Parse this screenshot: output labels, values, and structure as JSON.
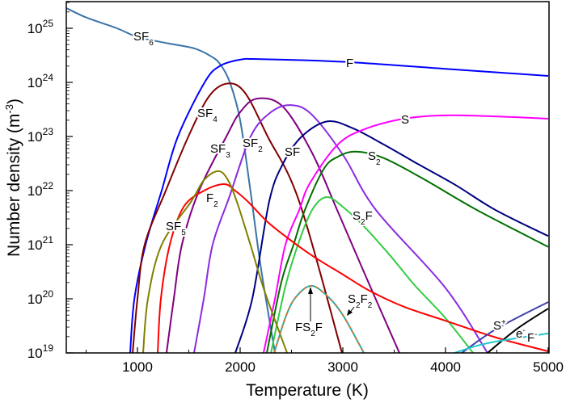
{
  "chart_data": {
    "type": "line",
    "xlabel": "Temperature (K)",
    "ylabel": "Number density (m",
    "ylabel_unit_sup": "-3",
    "ylabel_close": ")",
    "xlim": [
      300,
      5000
    ],
    "ylim": [
      1e+19,
      3e+25
    ],
    "yscale": "log",
    "xticks": [
      1000,
      2000,
      3000,
      4000,
      5000
    ],
    "yticks": [
      {
        "base": "10",
        "exp": "19"
      },
      {
        "base": "10",
        "exp": "20"
      },
      {
        "base": "10",
        "exp": "21"
      },
      {
        "base": "10",
        "exp": "22"
      },
      {
        "base": "10",
        "exp": "23"
      },
      {
        "base": "10",
        "exp": "24"
      },
      {
        "base": "10",
        "exp": "25"
      }
    ],
    "grid": false,
    "legend": "inline labels",
    "series": [
      {
        "name": "SF6",
        "color": "#3b73a8",
        "points": [
          [
            300,
            25.38
          ],
          [
            500,
            25.2
          ],
          [
            800,
            25.0
          ],
          [
            1000,
            24.84
          ],
          [
            1300,
            24.72
          ],
          [
            1550,
            24.63
          ],
          [
            1700,
            24.5
          ],
          [
            1800,
            24.35
          ],
          [
            1900,
            24.0
          ],
          [
            2000,
            23.3
          ],
          [
            2100,
            22.0
          ],
          [
            2200,
            20.6
          ],
          [
            2339,
            19
          ]
        ]
      },
      {
        "name": "F",
        "color": "#0000ff",
        "points": [
          [
            929,
            19
          ],
          [
            970,
            20
          ],
          [
            1079,
            21
          ],
          [
            1236,
            22
          ],
          [
            1394,
            23
          ],
          [
            1654,
            24
          ],
          [
            1800,
            24.3
          ],
          [
            2000,
            24.42
          ],
          [
            2200,
            24.43
          ],
          [
            3000,
            24.38
          ],
          [
            4000,
            24.25
          ],
          [
            5000,
            24.12
          ]
        ]
      },
      {
        "name": "SF4",
        "color": "#800000",
        "points": [
          [
            953,
            19
          ],
          [
            1000,
            20
          ],
          [
            1070,
            21
          ],
          [
            1276,
            22
          ],
          [
            1496,
            23
          ],
          [
            1700,
            23.75
          ],
          [
            1882,
            23.98
          ],
          [
            2050,
            23.8
          ],
          [
            2268,
            23
          ],
          [
            2575,
            21.8
          ],
          [
            2992,
            19
          ]
        ]
      },
      {
        "name": "SF3",
        "color": "#800080",
        "points": [
          [
            1283,
            19
          ],
          [
            1354,
            20
          ],
          [
            1433,
            21
          ],
          [
            1600,
            22
          ],
          [
            1866,
            23
          ],
          [
            2000,
            23.45
          ],
          [
            2165,
            23.7
          ],
          [
            2417,
            23.55
          ],
          [
            2700,
            22.7
          ],
          [
            2945,
            21.64
          ],
          [
            3250,
            20.3
          ],
          [
            3551,
            19
          ]
        ]
      },
      {
        "name": "SF2",
        "color": "#8a2be2",
        "points": [
          [
            1551,
            19
          ],
          [
            1646,
            20
          ],
          [
            1732,
            21
          ],
          [
            1898,
            21.9
          ],
          [
            2102,
            23
          ],
          [
            2300,
            23.45
          ],
          [
            2496,
            23.58
          ],
          [
            2700,
            23.4
          ],
          [
            3008,
            22.64
          ],
          [
            3323,
            21.64
          ],
          [
            4000,
            20.2
          ],
          [
            4409,
            19
          ]
        ]
      },
      {
        "name": "SF",
        "color": "#000080",
        "points": [
          [
            1953,
            19
          ],
          [
            2118,
            20
          ],
          [
            2283,
            21.8
          ],
          [
            2418,
            22.5
          ],
          [
            2600,
            23.0
          ],
          [
            2850,
            23.28
          ],
          [
            3100,
            23.15
          ],
          [
            3400,
            22.85
          ],
          [
            3732,
            22.49
          ],
          [
            4100,
            22.1
          ],
          [
            4488,
            21.64
          ],
          [
            5000,
            21.16
          ]
        ]
      },
      {
        "name": "S",
        "color": "#ff00ff",
        "points": [
          [
            2228,
            19
          ],
          [
            2339,
            20
          ],
          [
            2441,
            21
          ],
          [
            2575,
            21.64
          ],
          [
            2677,
            22.13
          ],
          [
            2945,
            22.84
          ],
          [
            3205,
            23.13
          ],
          [
            3600,
            23.33
          ],
          [
            4000,
            23.39
          ],
          [
            4500,
            23.37
          ],
          [
            5000,
            23.33
          ]
        ]
      },
      {
        "name": "S2",
        "color": "#007000",
        "points": [
          [
            2260,
            19
          ],
          [
            2400,
            20.3
          ],
          [
            2520,
            21
          ],
          [
            2630,
            21.64
          ],
          [
            2811,
            22.39
          ],
          [
            2945,
            22.62
          ],
          [
            3126,
            22.72
          ],
          [
            3400,
            22.6
          ],
          [
            3800,
            22.2
          ],
          [
            4307,
            21.64
          ],
          [
            5000,
            20.96
          ]
        ]
      },
      {
        "name": "S2F",
        "color": "#33cc44",
        "points": [
          [
            2300,
            19
          ],
          [
            2450,
            20.3
          ],
          [
            2600,
            21.2
          ],
          [
            2720,
            21.7
          ],
          [
            2850,
            21.88
          ],
          [
            3000,
            21.7
          ],
          [
            3200,
            21.35
          ],
          [
            3465,
            20.79
          ],
          [
            3700,
            20.25
          ],
          [
            3992,
            19.66
          ],
          [
            4268,
            19
          ]
        ]
      },
      {
        "name": "F2",
        "color": "#ff0000",
        "points": [
          [
            1197,
            19
          ],
          [
            1228,
            20
          ],
          [
            1315,
            21
          ],
          [
            1450,
            21.7
          ],
          [
            1650,
            22.0
          ],
          [
            1843,
            22.12
          ],
          [
            1950,
            22.0
          ],
          [
            2079,
            21.79
          ],
          [
            2250,
            21.45
          ],
          [
            2417,
            21.19
          ],
          [
            2700,
            20.8
          ],
          [
            3000,
            20.45
          ],
          [
            3260,
            20.15
          ],
          [
            3600,
            19.85
          ],
          [
            3992,
            19.6
          ],
          [
            4500,
            19.28
          ],
          [
            5000,
            19.03
          ]
        ]
      },
      {
        "name": "SF5",
        "color": "#808000",
        "points": [
          [
            1055,
            19
          ],
          [
            1102,
            20
          ],
          [
            1236,
            21
          ],
          [
            1520,
            21.79
          ],
          [
            1650,
            22.2
          ],
          [
            1787,
            22.36
          ],
          [
            1880,
            22.2
          ],
          [
            1969,
            21.79
          ],
          [
            2100,
            21.0
          ],
          [
            2236,
            20.15
          ],
          [
            2457,
            19
          ]
        ]
      },
      {
        "name": "FS2F",
        "color": "#20b2aa",
        "dashed": false,
        "points": [
          [
            2331,
            19
          ],
          [
            2450,
            19.7
          ],
          [
            2550,
            20.05
          ],
          [
            2693,
            20.24
          ],
          [
            2850,
            20.05
          ],
          [
            3000,
            19.7
          ],
          [
            3205,
            19
          ]
        ]
      },
      {
        "name": "S2F2",
        "color": "#d2783c",
        "dashed": true,
        "points": [
          [
            2331,
            19
          ],
          [
            2450,
            19.7
          ],
          [
            2550,
            20.05
          ],
          [
            2693,
            20.24
          ],
          [
            2850,
            20.05
          ],
          [
            3000,
            19.7
          ],
          [
            3205,
            19
          ]
        ]
      },
      {
        "name": "S+",
        "color": "#4040a8",
        "points": [
          [
            4157,
            19
          ],
          [
            4500,
            19.45
          ],
          [
            5000,
            19.94
          ]
        ]
      },
      {
        "name": "e-",
        "color": "#000000",
        "points": [
          [
            4409,
            19
          ],
          [
            4700,
            19.45
          ],
          [
            5000,
            19.82
          ]
        ]
      },
      {
        "name": "F-",
        "color": "#22c8d0",
        "points": [
          [
            4087,
            19
          ],
          [
            4300,
            19.13
          ],
          [
            4520,
            19.22
          ],
          [
            5000,
            19.36
          ]
        ]
      }
    ],
    "note_y_values": "points are [Temperature K, log10 number density m^-3]"
  }
}
